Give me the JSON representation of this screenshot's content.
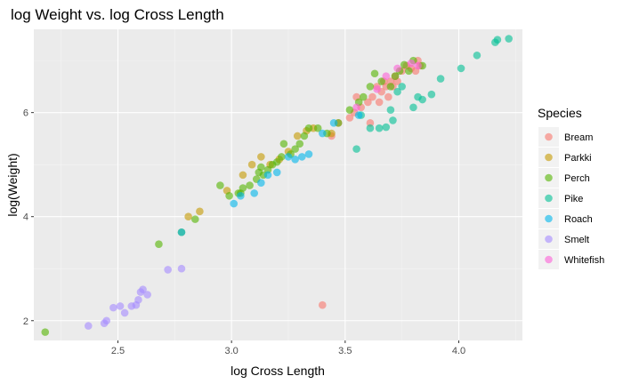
{
  "chart_data": {
    "type": "scatter",
    "title": "log Weight vs. log Cross Length",
    "xlabel": "log Cross Length",
    "ylabel": "log(Weight)",
    "xlim": [
      2.13,
      4.28
    ],
    "ylim": [
      1.62,
      7.6
    ],
    "xticks": [
      2.5,
      3.0,
      3.5,
      4.0
    ],
    "xtick_labels": [
      "2.5",
      "3.0",
      "3.5",
      "4.0"
    ],
    "yticks": [
      2,
      4,
      6
    ],
    "ytick_labels": [
      "2",
      "4",
      "6"
    ],
    "grid": true,
    "legend": {
      "title": "Species",
      "position": "right"
    },
    "series": [
      {
        "name": "Bream",
        "color": "#F8766D",
        "points": [
          [
            3.4,
            2.3
          ],
          [
            3.44,
            5.55
          ],
          [
            3.47,
            5.8
          ],
          [
            3.52,
            5.9
          ],
          [
            3.54,
            6.0
          ],
          [
            3.55,
            6.3
          ],
          [
            3.57,
            6.1
          ],
          [
            3.6,
            6.2
          ],
          [
            3.61,
            5.8
          ],
          [
            3.62,
            6.3
          ],
          [
            3.64,
            6.5
          ],
          [
            3.65,
            6.2
          ],
          [
            3.66,
            6.4
          ],
          [
            3.67,
            6.6
          ],
          [
            3.68,
            6.5
          ],
          [
            3.69,
            6.3
          ],
          [
            3.7,
            6.6
          ],
          [
            3.71,
            6.5
          ],
          [
            3.72,
            6.7
          ],
          [
            3.73,
            6.6
          ],
          [
            3.75,
            6.8
          ],
          [
            3.77,
            6.9
          ],
          [
            3.79,
            6.85
          ],
          [
            3.81,
            6.8
          ],
          [
            3.82,
            7.0
          ],
          [
            3.83,
            6.9
          ]
        ]
      },
      {
        "name": "Parkki",
        "color": "#C49A00",
        "points": [
          [
            2.81,
            4.0
          ],
          [
            2.86,
            4.1
          ],
          [
            2.98,
            4.5
          ],
          [
            3.05,
            4.8
          ],
          [
            3.09,
            5.0
          ],
          [
            3.13,
            5.15
          ],
          [
            3.17,
            5.0
          ],
          [
            3.21,
            5.1
          ],
          [
            3.25,
            5.25
          ],
          [
            3.29,
            5.55
          ],
          [
            3.33,
            5.65
          ],
          [
            3.36,
            5.7
          ],
          [
            3.44,
            5.6
          ]
        ]
      },
      {
        "name": "Perch",
        "color": "#53B400",
        "points": [
          [
            2.18,
            1.78
          ],
          [
            2.68,
            3.47
          ],
          [
            2.78,
            3.7
          ],
          [
            2.84,
            3.95
          ],
          [
            2.95,
            4.6
          ],
          [
            2.99,
            4.4
          ],
          [
            3.03,
            4.45
          ],
          [
            3.04,
            4.45
          ],
          [
            3.05,
            4.55
          ],
          [
            3.08,
            4.6
          ],
          [
            3.11,
            4.72
          ],
          [
            3.12,
            4.85
          ],
          [
            3.13,
            4.95
          ],
          [
            3.14,
            4.8
          ],
          [
            3.16,
            4.9
          ],
          [
            3.18,
            5.0
          ],
          [
            3.2,
            5.05
          ],
          [
            3.22,
            5.15
          ],
          [
            3.23,
            5.4
          ],
          [
            3.26,
            5.2
          ],
          [
            3.28,
            5.3
          ],
          [
            3.3,
            5.4
          ],
          [
            3.32,
            5.55
          ],
          [
            3.34,
            5.7
          ],
          [
            3.38,
            5.7
          ],
          [
            3.42,
            5.6
          ],
          [
            3.47,
            5.8
          ],
          [
            3.52,
            6.05
          ],
          [
            3.56,
            6.2
          ],
          [
            3.58,
            6.3
          ],
          [
            3.61,
            6.5
          ],
          [
            3.63,
            6.75
          ],
          [
            3.66,
            6.6
          ],
          [
            3.7,
            6.5
          ],
          [
            3.72,
            6.7
          ],
          [
            3.74,
            6.8
          ],
          [
            3.76,
            6.92
          ],
          [
            3.78,
            6.8
          ],
          [
            3.8,
            7.0
          ],
          [
            3.84,
            6.9
          ]
        ]
      },
      {
        "name": "Pike",
        "color": "#00C094",
        "points": [
          [
            3.55,
            5.3
          ],
          [
            3.57,
            5.95
          ],
          [
            3.61,
            5.7
          ],
          [
            3.65,
            5.7
          ],
          [
            3.68,
            5.72
          ],
          [
            3.7,
            6.05
          ],
          [
            3.71,
            5.85
          ],
          [
            3.73,
            6.4
          ],
          [
            3.75,
            6.5
          ],
          [
            3.8,
            6.1
          ],
          [
            3.82,
            6.3
          ],
          [
            3.84,
            6.25
          ],
          [
            3.88,
            6.35
          ],
          [
            3.92,
            6.65
          ],
          [
            4.01,
            6.85
          ],
          [
            4.08,
            7.1
          ],
          [
            4.16,
            7.35
          ],
          [
            4.17,
            7.4
          ],
          [
            4.22,
            7.42
          ]
        ]
      },
      {
        "name": "Roach",
        "color": "#00B6EB",
        "points": [
          [
            2.78,
            3.7
          ],
          [
            3.01,
            4.25
          ],
          [
            3.04,
            4.4
          ],
          [
            3.1,
            4.45
          ],
          [
            3.13,
            4.65
          ],
          [
            3.16,
            4.8
          ],
          [
            3.2,
            4.85
          ],
          [
            3.25,
            5.15
          ],
          [
            3.28,
            5.1
          ],
          [
            3.31,
            5.15
          ],
          [
            3.34,
            5.2
          ],
          [
            3.4,
            5.6
          ],
          [
            3.45,
            5.8
          ],
          [
            3.56,
            5.95
          ]
        ]
      },
      {
        "name": "Smelt",
        "color": "#A58AFF",
        "points": [
          [
            2.37,
            1.9
          ],
          [
            2.44,
            1.95
          ],
          [
            2.45,
            2.0
          ],
          [
            2.48,
            2.25
          ],
          [
            2.51,
            2.28
          ],
          [
            2.53,
            2.15
          ],
          [
            2.56,
            2.28
          ],
          [
            2.58,
            2.3
          ],
          [
            2.59,
            2.4
          ],
          [
            2.6,
            2.55
          ],
          [
            2.61,
            2.6
          ],
          [
            2.63,
            2.5
          ],
          [
            2.72,
            2.98
          ],
          [
            2.78,
            3.0
          ]
        ]
      },
      {
        "name": "Whitefish",
        "color": "#FB61D7",
        "points": [
          [
            3.55,
            6.1
          ],
          [
            3.64,
            6.45
          ],
          [
            3.68,
            6.7
          ],
          [
            3.73,
            6.85
          ],
          [
            3.79,
            6.95
          ],
          [
            3.82,
            6.9
          ]
        ]
      }
    ]
  }
}
